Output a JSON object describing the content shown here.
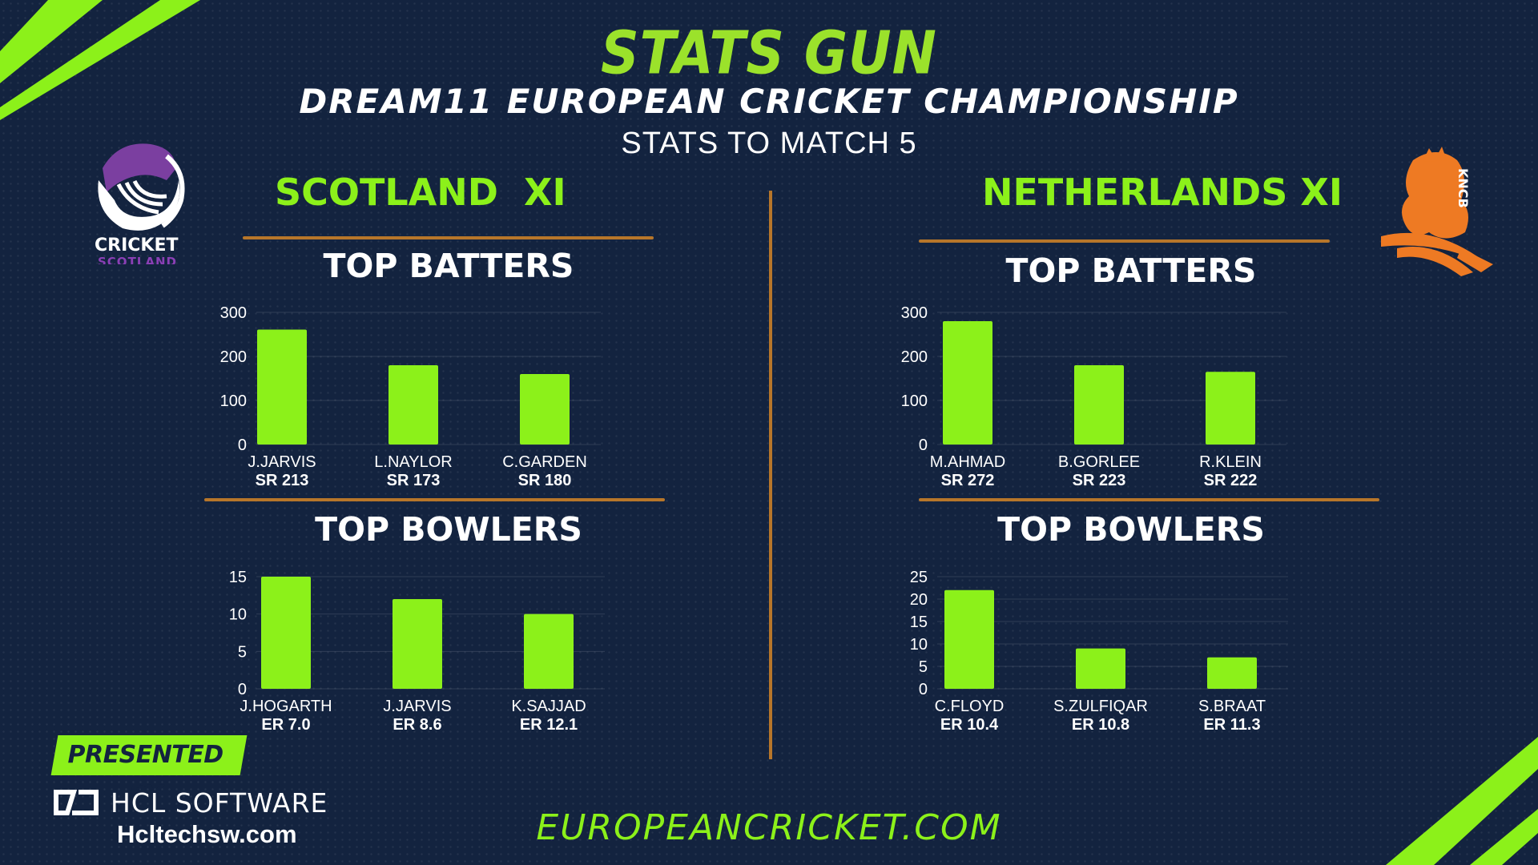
{
  "header": {
    "brand": "STATS GUN",
    "title": "DREAM11 EUROPEAN CRICKET CHAMPIONSHIP",
    "subtitle": "STATS TO MATCH 5"
  },
  "teams": {
    "left": {
      "name": "SCOTLAND  XI",
      "logo_text_1": "CRICKET",
      "logo_text_2": "SCOTLAND"
    },
    "right": {
      "name": "NETHERLANDS XI",
      "logo_text": "KNCB"
    }
  },
  "sections": {
    "batters": "TOP BATTERS",
    "bowlers": "TOP BOWLERS"
  },
  "colors": {
    "background": "#13233f",
    "bar": "#8cf11a",
    "accent_rule": "#b7762a",
    "brand_green": "#9be22b"
  },
  "chart_data": [
    {
      "id": "scotland-batters",
      "type": "bar",
      "categories": [
        "J.JARVIS",
        "L.NAYLOR",
        "C.GARDEN"
      ],
      "sublabels": [
        "SR 213",
        "SR 173",
        "SR 180"
      ],
      "values": [
        261,
        180,
        160
      ],
      "ylim": [
        0,
        300
      ],
      "yticks": [
        0,
        100,
        200,
        300
      ],
      "title": "TOP BATTERS",
      "grid": true
    },
    {
      "id": "scotland-bowlers",
      "type": "bar",
      "categories": [
        "J.HOGARTH",
        "J.JARVIS",
        "K.SAJJAD"
      ],
      "sublabels": [
        "ER 7.0",
        "ER 8.6",
        "ER 12.1"
      ],
      "values": [
        15,
        12,
        10
      ],
      "ylim": [
        0,
        15
      ],
      "yticks": [
        0,
        5,
        10,
        15
      ],
      "title": "TOP BOWLERS",
      "grid": true
    },
    {
      "id": "netherlands-batters",
      "type": "bar",
      "categories": [
        "M.AHMAD",
        "B.GORLEE",
        "R.KLEIN"
      ],
      "sublabels": [
        "SR 272",
        "SR 223",
        "SR 222"
      ],
      "values": [
        280,
        180,
        165
      ],
      "ylim": [
        0,
        300
      ],
      "yticks": [
        0,
        100,
        200,
        300
      ],
      "title": "TOP BATTERS",
      "grid": true
    },
    {
      "id": "netherlands-bowlers",
      "type": "bar",
      "categories": [
        "C.FLOYD",
        "S.ZULFIQAR",
        "S.BRAAT"
      ],
      "sublabels": [
        "ER 10.4",
        "ER 10.8",
        "ER 11.3"
      ],
      "values": [
        22,
        9,
        7
      ],
      "ylim": [
        0,
        25
      ],
      "yticks": [
        0,
        5,
        10,
        15,
        20,
        25
      ],
      "title": "TOP BOWLERS",
      "grid": true
    }
  ],
  "footer": {
    "presented_by": "PRESENTED BY",
    "sponsor": "HCL SOFTWARE",
    "sponsor_site": "Hcltechsw.com",
    "website": "EUROPEANCRICKET.COM"
  }
}
